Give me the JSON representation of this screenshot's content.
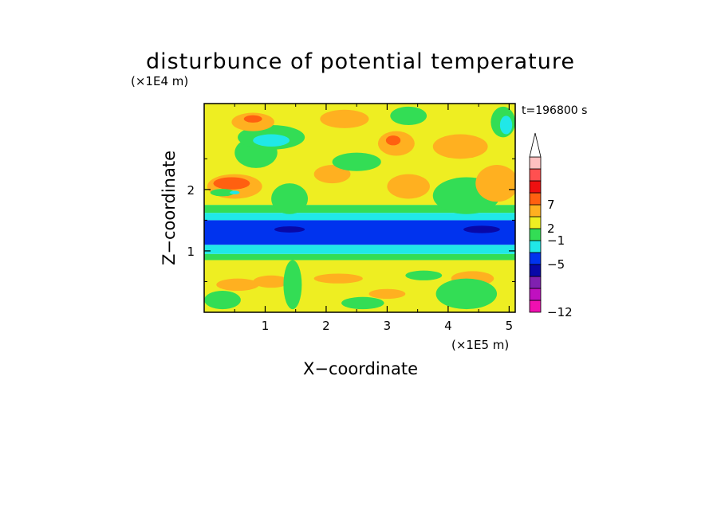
{
  "chart_data": {
    "type": "heatmap",
    "title": "disturbunce of potential temperature",
    "time_label": "t=196800 s",
    "xlabel": "X−coordinate",
    "ylabel": "Z−coordinate",
    "x_unit": "(×1E5 m)",
    "y_unit": "(×1E4 m)",
    "xlim": [
      0,
      5.1
    ],
    "ylim": [
      0,
      3.4
    ],
    "x_ticks": [
      1,
      2,
      3,
      4,
      5
    ],
    "y_ticks": [
      1,
      2
    ],
    "x_tick_labels": [
      "1",
      "2",
      "3",
      "4",
      "5"
    ],
    "y_tick_labels": [
      "1",
      "2"
    ],
    "colorbar": {
      "colors": [
        "#f010b0",
        "#c010c0",
        "#8020b0",
        "#0808a8",
        "#0033ee",
        "#20e8e8",
        "#33dd55",
        "#eeee22",
        "#ffb020",
        "#ff6010",
        "#ee1010",
        "#ff5050",
        "#ffc0c0"
      ],
      "labels": [
        "−12",
        "−5",
        "−1",
        "2",
        "7"
      ],
      "label_positions": [
        0,
        4,
        6,
        7,
        9
      ],
      "extend_max": true
    },
    "bands": [
      {
        "z_from": 0.0,
        "z_to": 0.85,
        "level": 7
      },
      {
        "z_from": 0.85,
        "z_to": 0.95,
        "level": 6
      },
      {
        "z_from": 0.95,
        "z_to": 1.1,
        "level": 5
      },
      {
        "z_from": 1.1,
        "z_to": 1.5,
        "level": 4
      },
      {
        "z_from": 1.5,
        "z_to": 1.62,
        "level": 5
      },
      {
        "z_from": 1.62,
        "z_to": 1.75,
        "level": 6
      },
      {
        "z_from": 1.75,
        "z_to": 3.4,
        "level": 7
      }
    ],
    "blobs": [
      {
        "x": 0.55,
        "z": 0.45,
        "rx": 0.35,
        "rz": 0.1,
        "level": 8
      },
      {
        "x": 1.1,
        "z": 0.5,
        "rx": 0.3,
        "rz": 0.1,
        "level": 8
      },
      {
        "x": 2.2,
        "z": 0.55,
        "rx": 0.4,
        "rz": 0.08,
        "level": 8
      },
      {
        "x": 3.0,
        "z": 0.3,
        "rx": 0.3,
        "rz": 0.08,
        "level": 8
      },
      {
        "x": 4.4,
        "z": 0.55,
        "rx": 0.35,
        "rz": 0.12,
        "level": 8
      },
      {
        "x": 0.3,
        "z": 0.2,
        "rx": 0.3,
        "rz": 0.15,
        "level": 6
      },
      {
        "x": 1.45,
        "z": 0.45,
        "rx": 0.15,
        "rz": 0.4,
        "level": 6
      },
      {
        "x": 2.6,
        "z": 0.15,
        "rx": 0.35,
        "rz": 0.1,
        "level": 6
      },
      {
        "x": 4.3,
        "z": 0.3,
        "rx": 0.5,
        "rz": 0.25,
        "level": 6
      },
      {
        "x": 3.6,
        "z": 0.6,
        "rx": 0.3,
        "rz": 0.08,
        "level": 6
      },
      {
        "x": 1.4,
        "z": 1.35,
        "rx": 0.25,
        "rz": 0.05,
        "level": 3
      },
      {
        "x": 4.55,
        "z": 1.35,
        "rx": 0.3,
        "rz": 0.06,
        "level": 3
      },
      {
        "x": 1.4,
        "z": 1.85,
        "rx": 0.3,
        "rz": 0.25,
        "level": 6
      },
      {
        "x": 4.3,
        "z": 1.9,
        "rx": 0.55,
        "rz": 0.3,
        "level": 6
      },
      {
        "x": 0.5,
        "z": 2.05,
        "rx": 0.45,
        "rz": 0.2,
        "level": 8
      },
      {
        "x": 0.45,
        "z": 2.1,
        "rx": 0.3,
        "rz": 0.1,
        "level": 9
      },
      {
        "x": 2.1,
        "z": 2.25,
        "rx": 0.3,
        "rz": 0.15,
        "level": 8
      },
      {
        "x": 3.35,
        "z": 2.05,
        "rx": 0.35,
        "rz": 0.2,
        "level": 8
      },
      {
        "x": 4.8,
        "z": 2.1,
        "rx": 0.35,
        "rz": 0.3,
        "level": 8
      },
      {
        "x": 0.85,
        "z": 2.6,
        "rx": 0.35,
        "rz": 0.25,
        "level": 6
      },
      {
        "x": 2.5,
        "z": 2.45,
        "rx": 0.4,
        "rz": 0.15,
        "level": 6
      },
      {
        "x": 1.1,
        "z": 2.85,
        "rx": 0.55,
        "rz": 0.2,
        "level": 6
      },
      {
        "x": 1.1,
        "z": 2.8,
        "rx": 0.3,
        "rz": 0.1,
        "level": 5
      },
      {
        "x": 0.8,
        "z": 3.1,
        "rx": 0.35,
        "rz": 0.15,
        "level": 8
      },
      {
        "x": 0.8,
        "z": 3.15,
        "rx": 0.15,
        "rz": 0.06,
        "level": 9
      },
      {
        "x": 3.15,
        "z": 2.75,
        "rx": 0.3,
        "rz": 0.2,
        "level": 8
      },
      {
        "x": 3.1,
        "z": 2.8,
        "rx": 0.12,
        "rz": 0.08,
        "level": 9
      },
      {
        "x": 2.3,
        "z": 3.15,
        "rx": 0.4,
        "rz": 0.15,
        "level": 8
      },
      {
        "x": 3.35,
        "z": 3.2,
        "rx": 0.3,
        "rz": 0.15,
        "level": 6
      },
      {
        "x": 4.2,
        "z": 2.7,
        "rx": 0.45,
        "rz": 0.2,
        "level": 8
      },
      {
        "x": 4.9,
        "z": 3.1,
        "rx": 0.2,
        "rz": 0.25,
        "level": 6
      },
      {
        "x": 4.95,
        "z": 3.05,
        "rx": 0.1,
        "rz": 0.15,
        "level": 5
      },
      {
        "x": 0.3,
        "z": 1.95,
        "rx": 0.2,
        "rz": 0.06,
        "level": 6
      },
      {
        "x": 0.5,
        "z": 1.95,
        "rx": 0.08,
        "rz": 0.03,
        "level": 5
      }
    ]
  }
}
